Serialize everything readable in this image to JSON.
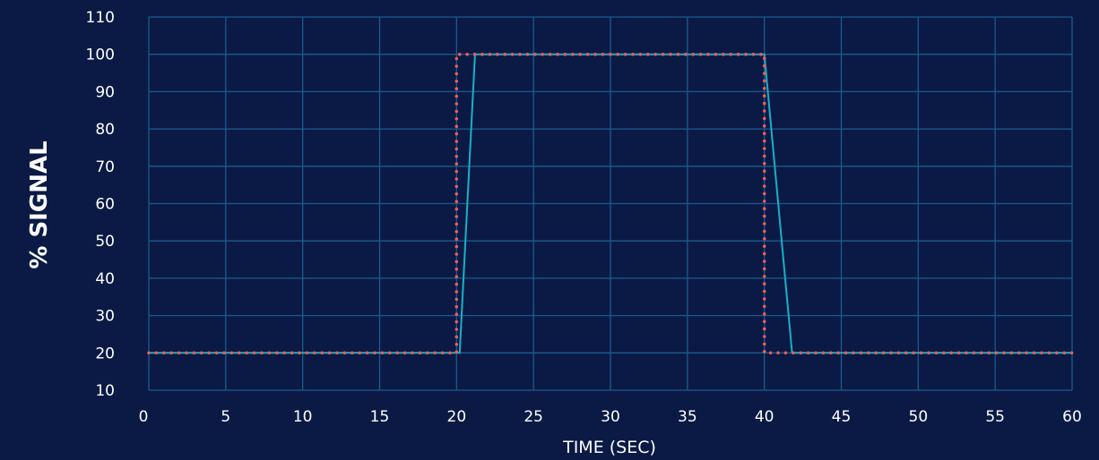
{
  "chart_data": {
    "type": "line",
    "xlabel": "TIME (SEC)",
    "ylabel": "% SIGNAL",
    "xlim": [
      0,
      60
    ],
    "ylim": [
      10,
      110
    ],
    "xticks": [
      0,
      5,
      10,
      15,
      20,
      25,
      30,
      35,
      40,
      45,
      50,
      55,
      60
    ],
    "yticks": [
      10,
      20,
      30,
      40,
      50,
      60,
      70,
      80,
      90,
      100,
      110
    ],
    "grid": true,
    "colors": {
      "background": "#0a1a45",
      "grid": "#1b5a8f",
      "series_1": "#1ab0c4",
      "series_2": "#ef5a5a"
    },
    "series": [
      {
        "style": "solid",
        "color": "#1ab0c4",
        "x": [
          0,
          20.2,
          21.2,
          40,
          41.8,
          60
        ],
        "y": [
          20,
          20,
          100,
          100,
          20,
          20
        ]
      },
      {
        "style": "dotted",
        "color": "#ef5a5a",
        "x": [
          0,
          20,
          20,
          40,
          40,
          60
        ],
        "y": [
          20,
          20,
          100,
          100,
          20,
          20
        ]
      }
    ]
  }
}
